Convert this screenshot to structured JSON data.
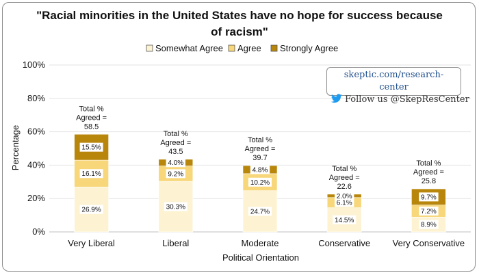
{
  "chart_data": {
    "type": "bar",
    "stacked": true,
    "title_lines": [
      "\"Racial minorities in the United States have no hope for success because",
      "of racism\""
    ],
    "xlabel": "Political Orientation",
    "ylabel": "Percentage",
    "ylim": [
      0,
      100
    ],
    "yticks": [
      "0%",
      "20%",
      "40%",
      "60%",
      "80%",
      "100%"
    ],
    "grid": true,
    "legend_position": "top",
    "categories": [
      "Very Liberal",
      "Liberal",
      "Moderate",
      "Conservative",
      "Very Conservative"
    ],
    "series": [
      {
        "name": "Somewhat Agree",
        "color": "#fdf3d3",
        "values": [
          26.9,
          30.3,
          24.7,
          14.5,
          8.9
        ],
        "labels": [
          "26.9%",
          "30.3%",
          "24.7%",
          "14.5%",
          "8.9%"
        ]
      },
      {
        "name": "Agree",
        "color": "#f7d77a",
        "values": [
          16.1,
          9.2,
          10.2,
          6.1,
          7.2
        ],
        "labels": [
          "16.1%",
          "9.2%",
          "10.2%",
          "6.1%",
          "7.2%"
        ]
      },
      {
        "name": "Strongly Agree",
        "color": "#b8860b",
        "values": [
          15.5,
          4.0,
          4.8,
          2.0,
          9.7
        ],
        "labels": [
          "15.5%",
          "4.0%",
          "4.8%",
          "2.0%",
          "9.7%"
        ]
      }
    ],
    "totals": [
      {
        "lines": [
          "Total %",
          "Agreed =",
          "58.5"
        ]
      },
      {
        "lines": [
          "Total %",
          "Agreed =",
          "43.5"
        ]
      },
      {
        "lines": [
          "Total %",
          "Agreed =",
          "39.7"
        ]
      },
      {
        "lines": [
          "Total %",
          "Agreed =",
          "22.6"
        ]
      },
      {
        "lines": [
          "Total %",
          "Agreed =",
          "25.8"
        ]
      }
    ]
  },
  "branding": {
    "url": "skeptic.com/research-center",
    "follow": "Follow us @SkepResCenter",
    "icon": "twitter-bird-icon",
    "icon_color": "#1d9bf0"
  }
}
